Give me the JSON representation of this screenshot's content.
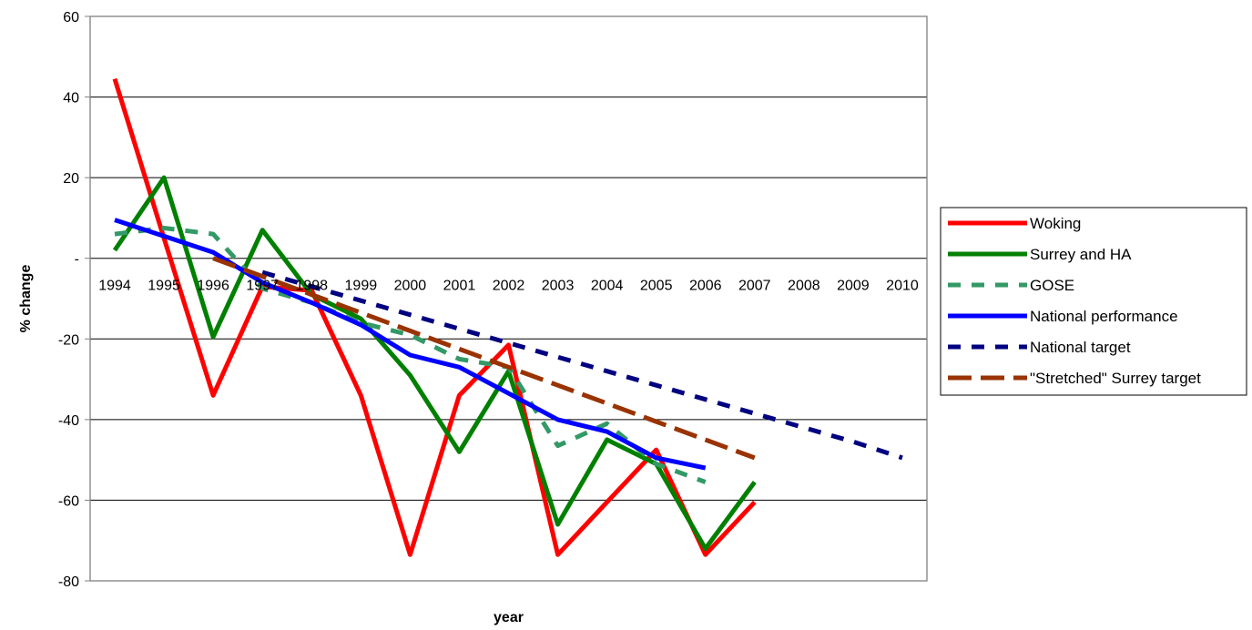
{
  "chart_data": {
    "type": "line",
    "title": "",
    "xlabel": "year",
    "ylabel": "% change",
    "ylim": [
      -80,
      60
    ],
    "yticks": [
      60,
      40,
      20,
      0,
      -20,
      -40,
      -60,
      -80
    ],
    "ytick_labels": [
      "60",
      "40",
      "20",
      "-",
      "-20",
      "-40",
      "-60",
      "-80"
    ],
    "categories": [
      "1994",
      "1995",
      "1996",
      "1997",
      "1998",
      "1999",
      "2000",
      "2001",
      "2002",
      "2003",
      "2004",
      "2005",
      "2006",
      "2007",
      "2008",
      "2009",
      "2010"
    ],
    "grid": "horizontal",
    "legend_position": "right",
    "series": [
      {
        "name": "Woking",
        "color": "#ff0000",
        "style": "solid",
        "values": [
          44.5,
          5,
          -34,
          -7,
          -8,
          -34,
          -73.5,
          -34,
          -21.5,
          -73.5,
          -60.5,
          -47.5,
          -73.5,
          -60.5,
          null,
          null,
          null
        ]
      },
      {
        "name": "Surrey and HA",
        "color": "#008000",
        "style": "solid",
        "values": [
          2,
          20,
          -19.5,
          7,
          -9,
          -15,
          -29,
          -48,
          -28,
          -66,
          -45,
          -51,
          -72,
          -55.5,
          null,
          null,
          null
        ]
      },
      {
        "name": "GOSE",
        "color": "#339966",
        "style": "dash",
        "values": [
          6,
          7.5,
          6,
          -7.5,
          -11,
          -16,
          -19,
          -25,
          -27,
          -46.5,
          -41,
          -51,
          -55.5,
          null,
          null,
          null,
          null
        ]
      },
      {
        "name": "National performance",
        "color": "#0000ff",
        "style": "solid",
        "values": [
          9.5,
          5.5,
          1.5,
          -6,
          -11,
          -16.5,
          -24,
          -27,
          -33.5,
          -40,
          -43,
          -49.5,
          -52,
          null,
          null,
          null,
          null
        ]
      },
      {
        "name": "National target",
        "color": "#000080",
        "style": "dash",
        "values": [
          null,
          null,
          null,
          -3.5,
          -7,
          -10.5,
          -14,
          -17.5,
          -21,
          -24.5,
          -28,
          -31.5,
          -35,
          -38.5,
          -42,
          -45.5,
          -49.5
        ]
      },
      {
        "name": "\"Stretched\" Surrey target",
        "color": "#993300",
        "style": "longdash",
        "values": [
          null,
          null,
          0,
          -4.5,
          -9,
          -13.5,
          -18,
          -22.5,
          -27,
          -31.5,
          -36,
          -40.5,
          -45,
          -49.5,
          null,
          null,
          null
        ]
      }
    ]
  }
}
